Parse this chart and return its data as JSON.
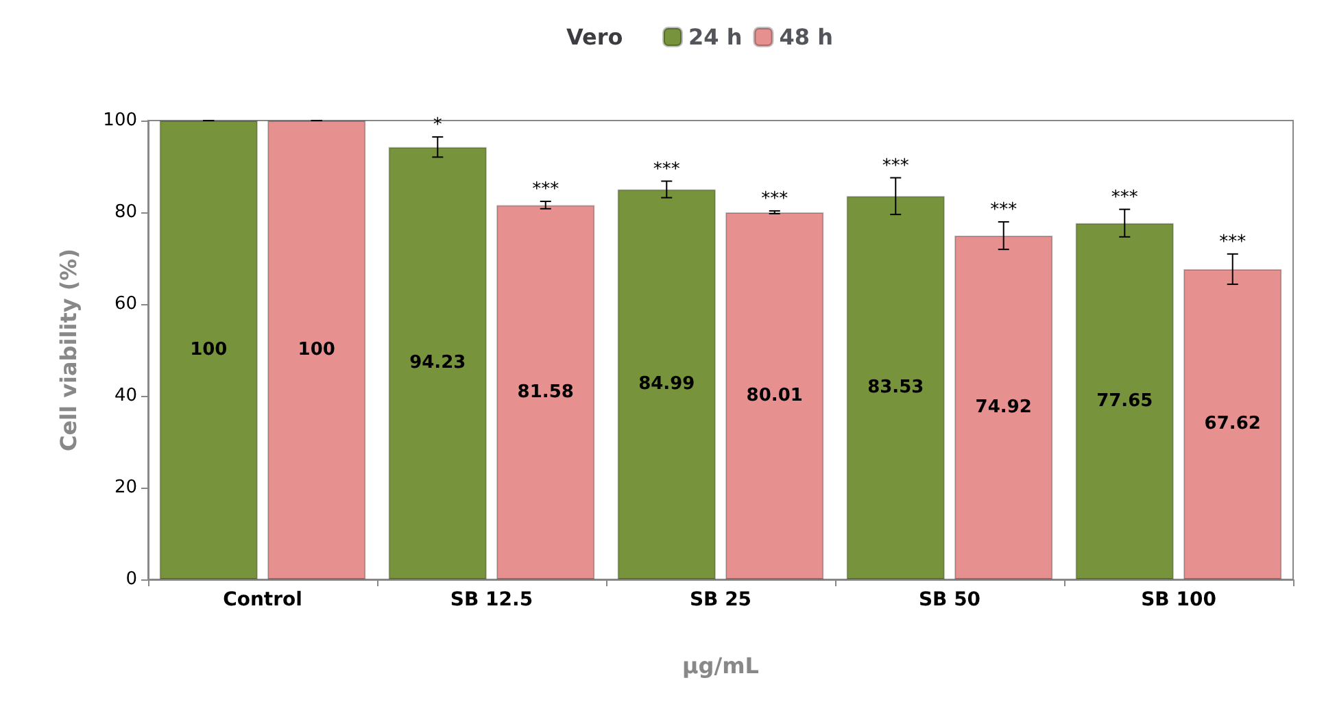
{
  "chart_data": {
    "type": "bar",
    "title": "Vero",
    "xlabel": "µg/mL",
    "ylabel": "Cell viability (%)",
    "categories": [
      "Control",
      "SB 12.5",
      "SB 25",
      "SB 50",
      "SB 100"
    ],
    "series": [
      {
        "name": "24 h",
        "color": "#77933c",
        "values": [
          100,
          94.23,
          84.99,
          83.53,
          77.65
        ],
        "errors": [
          0,
          2.2,
          1.8,
          4,
          3
        ]
      },
      {
        "name": "48 h",
        "color": "#e6908f",
        "values": [
          100,
          81.58,
          80.01,
          74.92,
          67.62
        ],
        "errors": [
          0,
          0.8,
          0.3,
          3,
          3.3
        ]
      }
    ],
    "annotations": [
      {
        "text": "*",
        "x": "SB 12.5",
        "y": 94.23
      },
      {
        "text": "***",
        "x": "SB 12.5",
        "y": 81.58
      },
      {
        "text": "***",
        "x": "SB 25",
        "y": 84.99
      },
      {
        "text": "***",
        "x": "SB 25",
        "y": 80.01
      },
      {
        "text": "***",
        "x": "SB 50",
        "y": 74.92
      },
      {
        "text": "***",
        "x": "SB 50",
        "y": 83.53
      },
      {
        "text": "***",
        "x": "SB 100",
        "y": 67.62
      },
      {
        "text": "***",
        "x": "SB 100",
        "y": 77.65
      }
    ],
    "ylim": [
      0,
      100
    ],
    "yticks": [
      0,
      20,
      40,
      60,
      80,
      100
    ],
    "grid": false,
    "legend": "top",
    "data_labels": true
  }
}
